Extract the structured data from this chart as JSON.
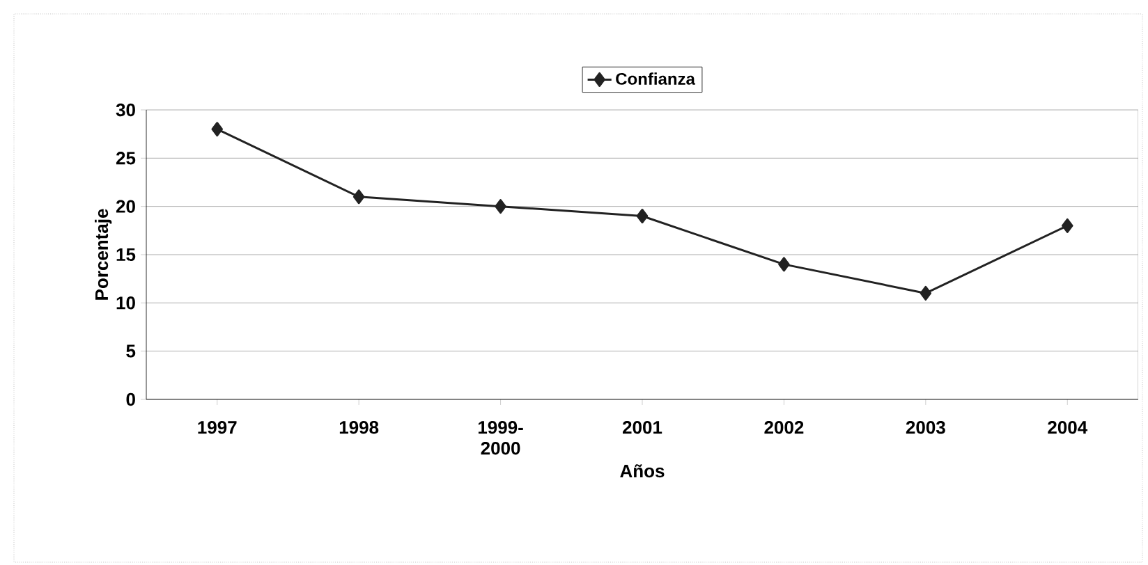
{
  "chart_data": {
    "type": "line",
    "xlabel": "Años",
    "ylabel": "Porcentaje",
    "categories": [
      "1997",
      "1998",
      "1999-2000",
      "2001",
      "2002",
      "2003",
      "2004"
    ],
    "series": [
      {
        "name": "Confianza",
        "color": "#222222",
        "values": [
          28,
          21,
          20,
          19,
          14,
          11,
          18
        ]
      }
    ],
    "ylim": [
      0,
      30
    ],
    "yticks": [
      0,
      5,
      10,
      15,
      20,
      25,
      30
    ],
    "grid": "y",
    "legend": "top",
    "marker": "diamond",
    "line_style": "solid"
  }
}
